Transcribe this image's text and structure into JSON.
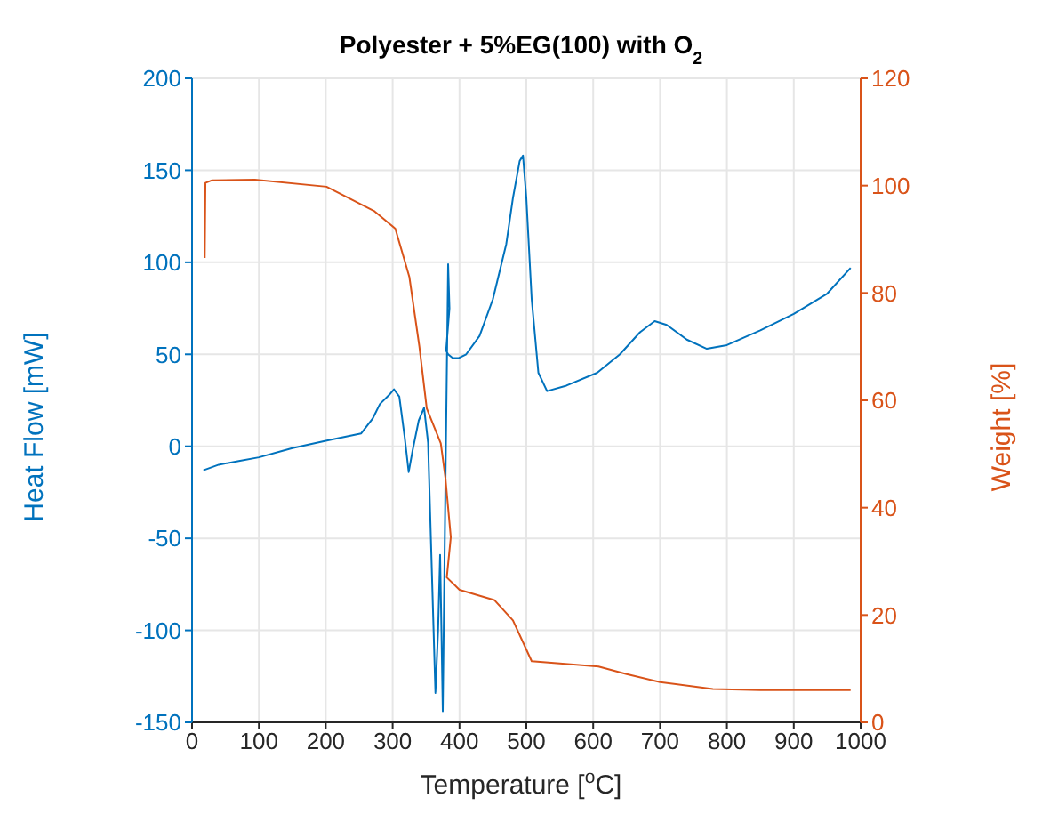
{
  "chart_data": {
    "type": "line",
    "title": "Polyester + 5%EG(100) with O$_{2}$",
    "xlabel": "Temperature [$^{o}$C]",
    "ylabel": "Heat Flow [mW]",
    "y2label": "Weight [%]",
    "xlim": [
      0,
      1000
    ],
    "xticks": [
      0,
      100,
      200,
      300,
      400,
      500,
      600,
      700,
      800,
      900,
      1000
    ],
    "ylim": [
      -150,
      200
    ],
    "yticks": [
      -150,
      -100,
      -50,
      0,
      50,
      100,
      150,
      200
    ],
    "y2lim": [
      0,
      120
    ],
    "y2ticks": [
      0,
      20,
      40,
      60,
      80,
      100,
      120
    ],
    "grid": true,
    "marker": "none",
    "line_style": "solid",
    "series": [
      {
        "color": "#0072bd",
        "x": [
          17,
          40,
          70,
          100,
          150,
          200,
          253,
          270,
          281,
          295,
          302,
          310,
          318,
          324,
          330,
          339,
          347,
          353,
          358,
          364,
          368,
          371,
          373,
          375,
          379,
          383,
          385,
          380,
          383,
          390,
          399,
          410,
          430,
          450,
          470,
          480,
          490,
          495,
          500,
          508,
          518,
          531,
          560,
          606,
          640,
          670,
          692,
          710,
          740,
          770,
          800,
          850,
          900,
          950,
          985
        ],
        "values": [
          -13,
          -10,
          -8,
          -6,
          -1,
          3,
          7,
          15,
          23,
          28,
          31,
          27,
          5,
          -14,
          -2,
          14,
          21,
          2,
          -60,
          -134,
          -100,
          -59,
          -100,
          -144,
          -20,
          99,
          75,
          52,
          50,
          48,
          48,
          50,
          60,
          80,
          110,
          135,
          155,
          158,
          135,
          80,
          40,
          30,
          33,
          40,
          50,
          62,
          68,
          66,
          58,
          53,
          55,
          63,
          72,
          83,
          97
        ]
      },
      {
        "color": "#d95319",
        "axis": "y2",
        "x": [
          19,
          20,
          30,
          94,
          201,
          272,
          304,
          325,
          340,
          351,
          372,
          379,
          387,
          381,
          400,
          452,
          480,
          501,
          508,
          550,
          608,
          650,
          700,
          779,
          850,
          950,
          985
        ],
        "values": [
          86.5,
          100.5,
          101,
          101.1,
          99.8,
          95.3,
          92,
          83,
          70,
          58.5,
          52,
          45.5,
          34.5,
          27,
          24.7,
          22.8,
          19,
          13.3,
          11.4,
          11,
          10.4,
          9,
          7.5,
          6.2,
          6,
          6,
          6
        ]
      }
    ]
  }
}
